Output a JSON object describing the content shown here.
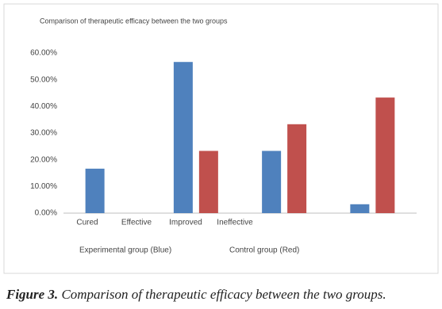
{
  "chart_data": {
    "type": "bar",
    "title": "Comparison of therapeutic efficacy between the two groups",
    "categories": [
      "Cured",
      "Effective",
      "Improved",
      "Ineffective"
    ],
    "series": [
      {
        "name": "Experimental group (Blue)",
        "color": "#4f81bd",
        "values": [
          16.67,
          56.67,
          23.33,
          3.33
        ]
      },
      {
        "name": "Control group (Red)",
        "color": "#c0504d",
        "values": [
          0,
          23.33,
          33.33,
          43.33
        ]
      }
    ],
    "ylim": [
      0,
      60
    ],
    "yticks": [
      {
        "value": 0,
        "label": "0.00%"
      },
      {
        "value": 10,
        "label": "10.00%"
      },
      {
        "value": 20,
        "label": "20.00%"
      },
      {
        "value": 30,
        "label": "30.00%"
      },
      {
        "value": 40,
        "label": "40.00%"
      },
      {
        "value": 50,
        "label": "50.00%"
      },
      {
        "value": 60,
        "label": "60.00%"
      }
    ],
    "grid": false
  },
  "caption": {
    "label": "Figure 3.",
    "text": "Comparison of therapeutic efficacy between the two groups."
  }
}
